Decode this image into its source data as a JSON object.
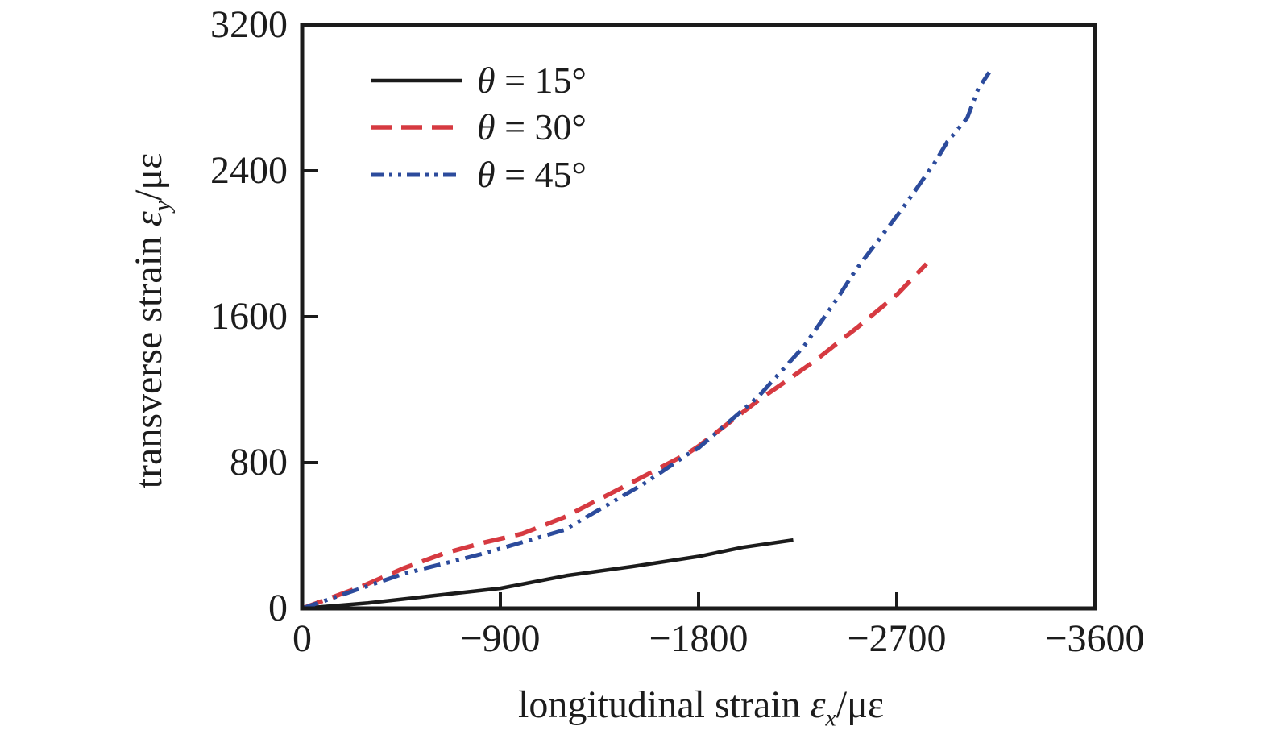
{
  "figure": {
    "background": "#ffffff",
    "text_color": "#1c1c1c",
    "frame_color": "#1b1b1b"
  },
  "yaxis": {
    "title_prefix": "transverse strain ",
    "title_symbol": "ε",
    "title_subscript": "y",
    "title_unit": "/με",
    "tick_labels": [
      "3200",
      "2400",
      "1600",
      "800",
      "0"
    ]
  },
  "xaxis": {
    "title_prefix": "longitudinal strain ",
    "title_symbol": "ε",
    "title_subscript": "x",
    "title_unit": "/με",
    "tick_labels": [
      "0",
      "−900",
      "−1800",
      "−2700",
      "−3600"
    ]
  },
  "legend": {
    "items": [
      {
        "symbol": "θ",
        "rest": " = 15°"
      },
      {
        "symbol": "θ",
        "rest": " = 30°"
      },
      {
        "symbol": "θ",
        "rest": " = 45°"
      }
    ]
  },
  "chart_data": {
    "type": "line",
    "title": "",
    "xlabel": "longitudinal strain εx/με",
    "ylabel": "transverse strain εy/με",
    "xlim": [
      0,
      -3600
    ],
    "ylim": [
      0,
      3200
    ],
    "x_tick_values": [
      0,
      -900,
      -1800,
      -2700,
      -3600
    ],
    "y_tick_values": [
      0,
      800,
      1600,
      2400,
      3200
    ],
    "grid": false,
    "legend_position": "top-left-inside",
    "series": [
      {
        "name": "θ = 15°",
        "color": "#1b1b1b",
        "line_style": "solid",
        "x": [
          0,
          -300,
          -600,
          -900,
          -1200,
          -1500,
          -1800,
          -2000,
          -2230
        ],
        "y": [
          0,
          30,
          70,
          110,
          180,
          230,
          285,
          335,
          375
        ]
      },
      {
        "name": "θ = 30°",
        "color": "#d63a41",
        "line_style": "dashed",
        "x": [
          0,
          -270,
          -460,
          -640,
          -820,
          -1000,
          -1190,
          -1400,
          -1560,
          -1750,
          -1800,
          -2070,
          -2190,
          -2330,
          -2520,
          -2700,
          -2835
        ],
        "y": [
          0,
          120,
          220,
          300,
          360,
          410,
          500,
          630,
          730,
          850,
          890,
          1140,
          1240,
          1360,
          1540,
          1720,
          1890
        ]
      },
      {
        "name": "θ = 45°",
        "color": "#2c4b9c",
        "line_style": "dash-dot-dot",
        "x": [
          0,
          -460,
          -820,
          -1190,
          -1560,
          -1750,
          -1800,
          -2070,
          -2280,
          -2430,
          -2510,
          -2730,
          -2870,
          -2930,
          -3020,
          -3070,
          -3120
        ],
        "y": [
          0,
          190,
          300,
          430,
          690,
          845,
          880,
          1160,
          1440,
          1700,
          1850,
          2200,
          2440,
          2560,
          2690,
          2850,
          2940
        ]
      }
    ]
  }
}
